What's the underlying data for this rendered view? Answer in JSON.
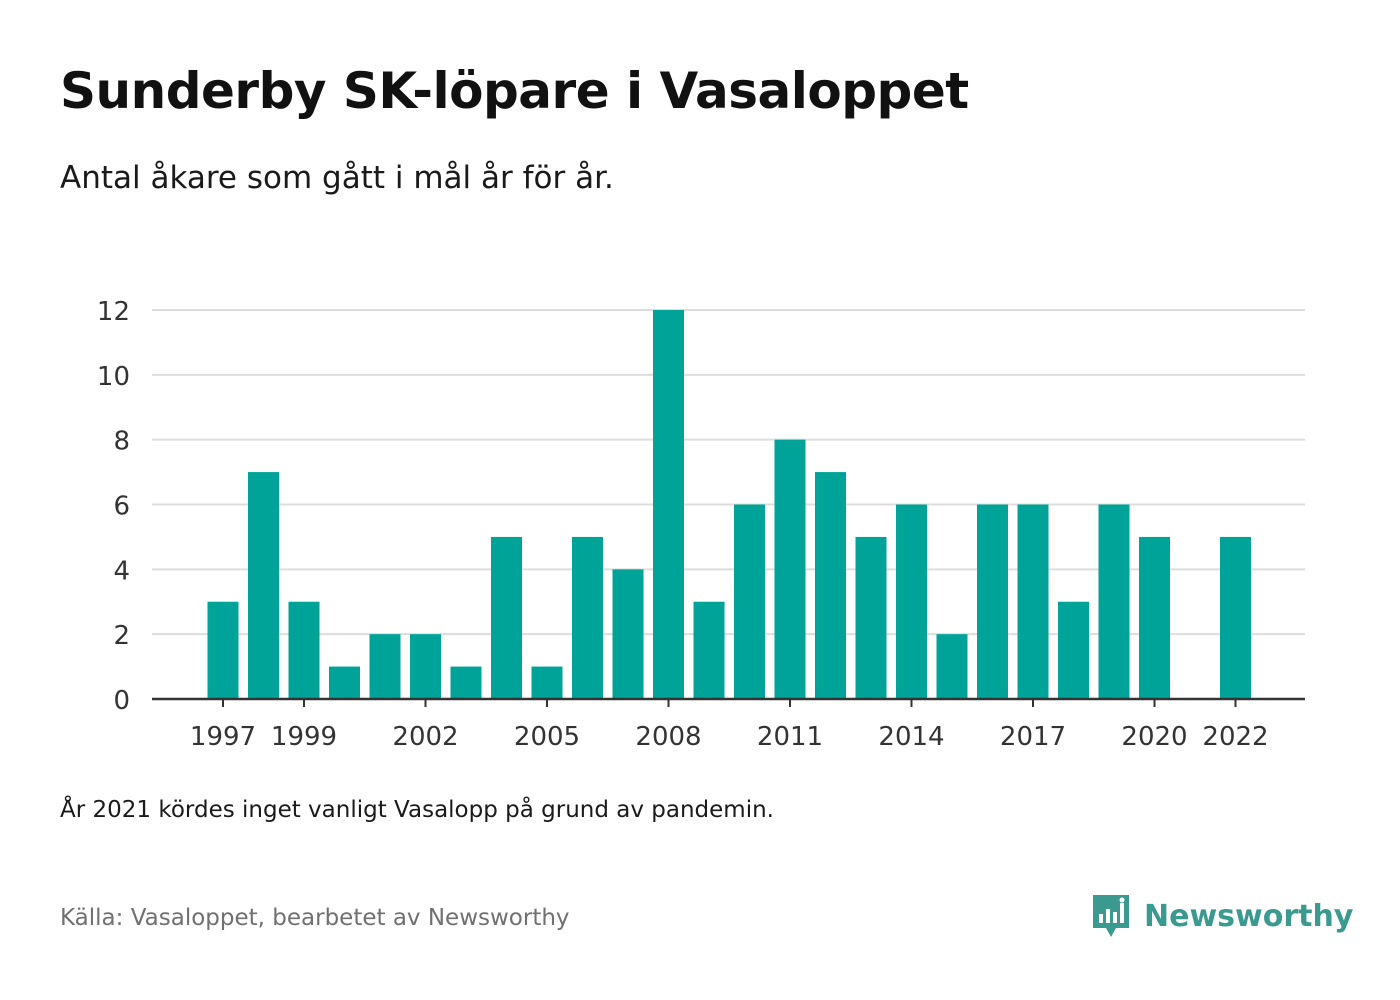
{
  "title": "Sunderby SK-löpare i Vasaloppet",
  "subtitle": "Antal åkare som gått i mål år för år.",
  "note": "År 2021 kördes inget vanligt Vasalopp på grund av pandemin.",
  "source": "Källa: Vasaloppet, bearbetet av Newsworthy",
  "brand": {
    "name": "Newsworthy",
    "icon": "newsworthy-logo-icon",
    "color": "#3a9a8f"
  },
  "colors": {
    "bar": "#00a398",
    "grid": "#dddddd",
    "axis": "#333333",
    "tick_text": "#333333"
  },
  "chart_data": {
    "type": "bar",
    "title": "Sunderby SK-löpare i Vasaloppet",
    "subtitle": "Antal åkare som gått i mål år för år.",
    "x": [
      1997,
      1998,
      1999,
      2000,
      2001,
      2002,
      2003,
      2004,
      2005,
      2006,
      2007,
      2008,
      2009,
      2010,
      2011,
      2012,
      2013,
      2014,
      2015,
      2016,
      2017,
      2018,
      2019,
      2020,
      2021,
      2022
    ],
    "values": [
      3,
      7,
      3,
      1,
      2,
      2,
      1,
      5,
      1,
      5,
      4,
      12,
      3,
      6,
      8,
      7,
      5,
      6,
      2,
      6,
      6,
      3,
      6,
      5,
      null,
      5
    ],
    "x_tick_labels": [
      "1997",
      "1999",
      "2002",
      "2005",
      "2008",
      "2011",
      "2014",
      "2017",
      "2020",
      "2022"
    ],
    "y_ticks": [
      0,
      2,
      4,
      6,
      8,
      10,
      12
    ],
    "ylim": [
      0,
      12
    ],
    "grid": true,
    "xlabel": "",
    "ylabel": ""
  }
}
